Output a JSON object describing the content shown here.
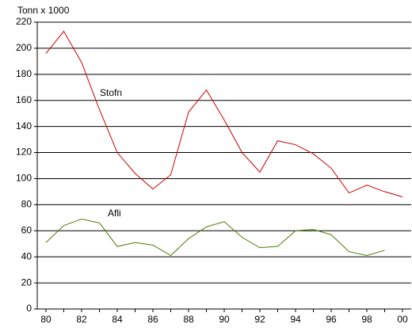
{
  "chart_data": {
    "type": "line",
    "title": "Tonn x 1000",
    "categories": [
      "80",
      null,
      "82",
      null,
      "84",
      null,
      "86",
      null,
      "88",
      null,
      "90",
      null,
      "92",
      null,
      "94",
      null,
      "96",
      null,
      "98",
      null,
      "00"
    ],
    "series": [
      {
        "name": "Stofn",
        "color": "#cc0000",
        "values": [
          196,
          213,
          189,
          153,
          120,
          104,
          92,
          103,
          151,
          168,
          145,
          120,
          105,
          129,
          126,
          119,
          108,
          89,
          95,
          90,
          86
        ]
      },
      {
        "name": "Afli",
        "color": "#4a7a00",
        "values": [
          51,
          64,
          69,
          66,
          48,
          51,
          49,
          41,
          54,
          63,
          67,
          55,
          47,
          48,
          60,
          61,
          57,
          44,
          41,
          45,
          null
        ]
      }
    ],
    "ylim": [
      0,
      220
    ],
    "yticks": [
      0,
      20,
      40,
      60,
      80,
      100,
      120,
      140,
      160,
      180,
      200,
      220
    ],
    "grid": true
  }
}
